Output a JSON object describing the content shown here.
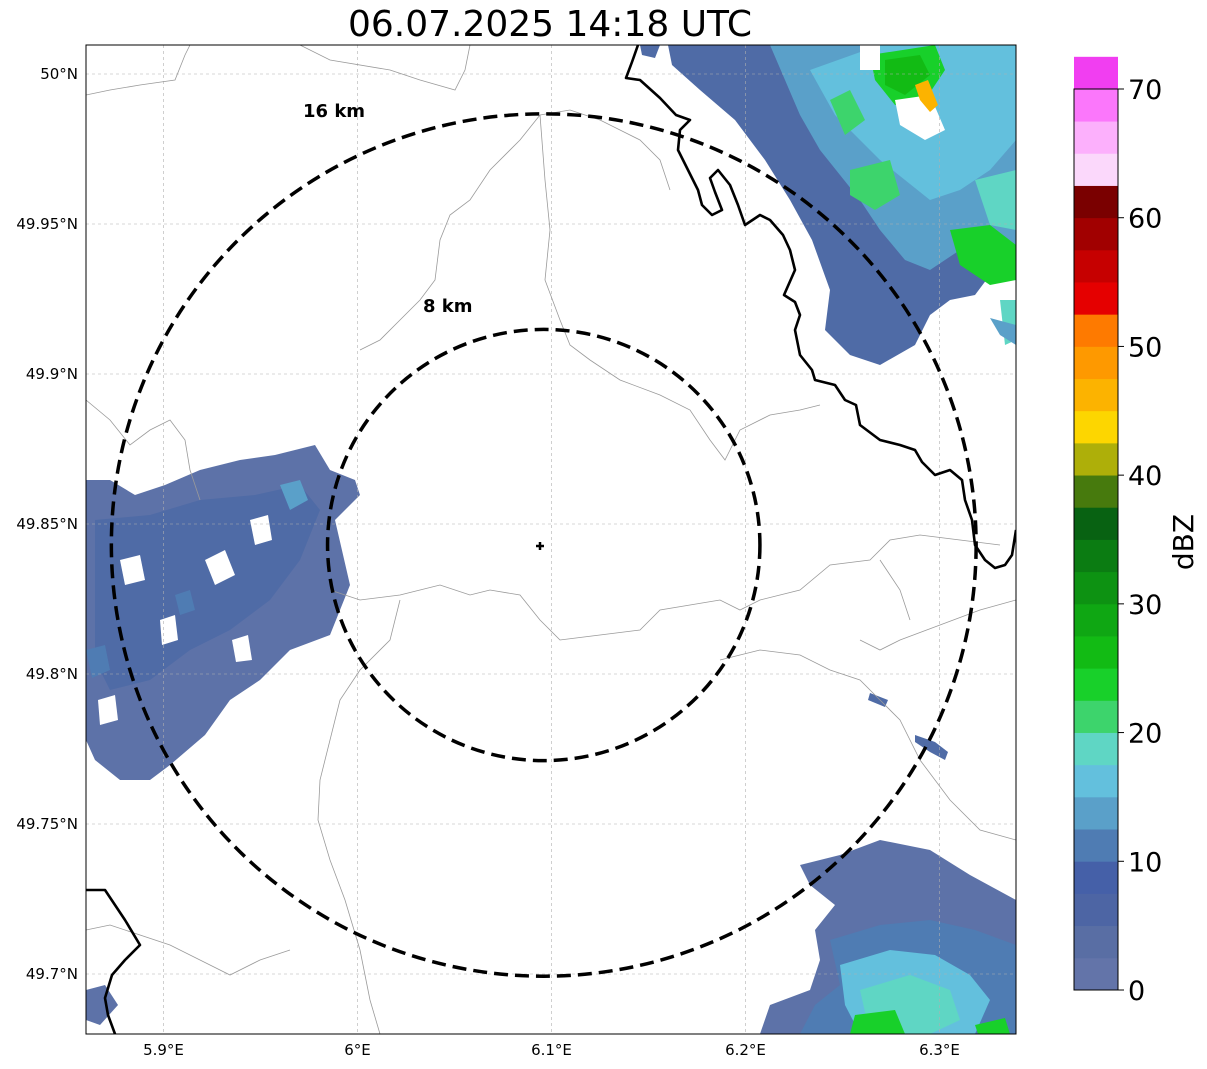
{
  "title": "06.07.2025 14:18 UTC",
  "map": {
    "lon_range": [
      5.86,
      6.34
    ],
    "lat_range": [
      49.68,
      50.01
    ],
    "x_ticks": [
      {
        "value": 5.9,
        "label": "5.9°E"
      },
      {
        "value": 6.0,
        "label": "6°E"
      },
      {
        "value": 6.1,
        "label": "6.1°E"
      },
      {
        "value": 6.2,
        "label": "6.2°E"
      },
      {
        "value": 6.3,
        "label": "6.3°E"
      }
    ],
    "y_ticks": [
      {
        "value": 50.0,
        "label": "50°N"
      },
      {
        "value": 49.95,
        "label": "49.95°N"
      },
      {
        "value": 49.9,
        "label": "49.9°N"
      },
      {
        "value": 49.85,
        "label": "49.85°N"
      },
      {
        "value": 49.8,
        "label": "49.8°N"
      },
      {
        "value": 49.75,
        "label": "49.75°N"
      },
      {
        "value": 49.7,
        "label": "49.7°N"
      }
    ],
    "grid": true,
    "center": {
      "lon": 6.096,
      "lat": 49.843
    },
    "rings": [
      {
        "radius_km": 8,
        "label": "8 km"
      },
      {
        "radius_km": 16,
        "label": "16 km"
      }
    ]
  },
  "colorbar": {
    "label": "dBZ",
    "min": 0,
    "max": 70,
    "ticks": [
      0,
      10,
      20,
      30,
      40,
      50,
      60,
      70
    ],
    "colors": [
      "#6374a9",
      "#596ea4",
      "#4d65a4",
      "#4560a8",
      "#4f7cb3",
      "#5aa0c9",
      "#63c0dd",
      "#5fd6c4",
      "#3dd46c",
      "#18d02a",
      "#12bb14",
      "#0fa713",
      "#0d9212",
      "#0b7c12",
      "#086212",
      "#477a0d",
      "#aeaf09",
      "#fdd600",
      "#fcb300",
      "#fe9900",
      "#fe7a00",
      "#e50000",
      "#c60000",
      "#a10000",
      "#7a0000",
      "#fbd8fb",
      "#fcb0fc",
      "#fb77fb",
      "#f13ef1"
    ]
  },
  "chart_data": {
    "type": "map",
    "title": "06.07.2025 14:18 UTC",
    "colorbar_label": "dBZ",
    "colorbar_range": [
      0,
      70
    ],
    "radar_center": [
      6.096,
      49.843
    ],
    "range_rings_km": [
      8,
      16
    ],
    "echo_regions": [
      {
        "area": "northeast (top right)",
        "dbz_range": [
          0,
          28
        ]
      },
      {
        "area": "west (left, around 49.8-49.87°N)",
        "dbz_range": [
          0,
          10
        ]
      },
      {
        "area": "southeast (bottom right)",
        "dbz_range": [
          0,
          20
        ]
      }
    ]
  }
}
